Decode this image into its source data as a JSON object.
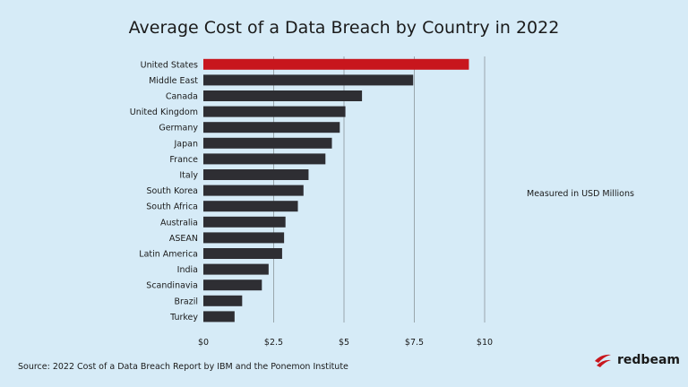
{
  "chart_data": {
    "type": "bar",
    "orientation": "horizontal",
    "title": "Average Cost of a Data Breach by Country in 2022",
    "categories": [
      "United States",
      "Middle East",
      "Canada",
      "United Kingdom",
      "Germany",
      "Japan",
      "France",
      "Italy",
      "South Korea",
      "South Africa",
      "Australia",
      "ASEAN",
      "Latin America",
      "India",
      "Scandinavia",
      "Brazil",
      "Turkey"
    ],
    "values": [
      9.44,
      7.46,
      5.64,
      5.05,
      4.85,
      4.57,
      4.34,
      3.74,
      3.56,
      3.36,
      2.92,
      2.87,
      2.8,
      2.32,
      2.08,
      1.38,
      1.11
    ],
    "xlim": [
      0,
      10
    ],
    "xticks": [
      0,
      2.5,
      5,
      7.5,
      10
    ],
    "xtick_labels": [
      "$0",
      "$2.5",
      "$5",
      "$7.5",
      "$10"
    ],
    "grid": "vertical",
    "highlight_color": "#c8161d",
    "bar_color": "#2e2e33",
    "grid_color": "#9aa6ad"
  },
  "note": "Measured in USD Millions",
  "source": "Source: 2022 Cost of a Data Breach Report by IBM and the Ponemon Institute",
  "brand": {
    "name": "redbeam",
    "icon": "redbeam-logo-icon",
    "color": "#c8161d"
  }
}
